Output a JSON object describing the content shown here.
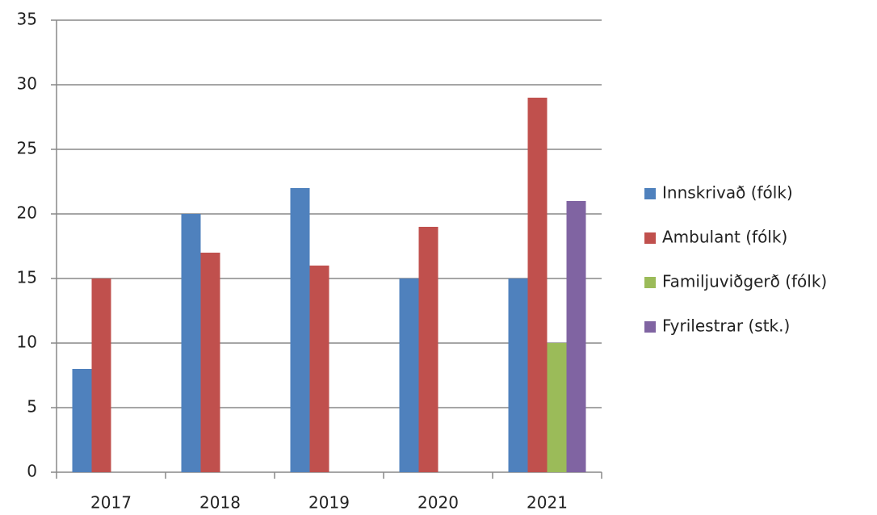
{
  "chart_data": {
    "type": "bar",
    "categories": [
      "2017",
      "2018",
      "2019",
      "2020",
      "2021"
    ],
    "series": [
      {
        "name": "Innskrivað (fólk)",
        "color": "#4f81bd",
        "values": [
          8,
          20,
          22,
          15,
          15
        ]
      },
      {
        "name": "Ambulant (fólk)",
        "color": "#c0504d",
        "values": [
          15,
          17,
          16,
          19,
          29
        ]
      },
      {
        "name": "Familjuviðgerð (fólk)",
        "color": "#9bbb59",
        "values": [
          null,
          null,
          null,
          null,
          10
        ]
      },
      {
        "name": "Fyrilestrar (stk.)",
        "color": "#8064a2",
        "values": [
          null,
          null,
          null,
          null,
          21
        ]
      }
    ],
    "ylim": [
      0,
      35
    ],
    "yticks": [
      0,
      5,
      10,
      15,
      20,
      25,
      30,
      35
    ],
    "grid": true,
    "legend": "right"
  }
}
